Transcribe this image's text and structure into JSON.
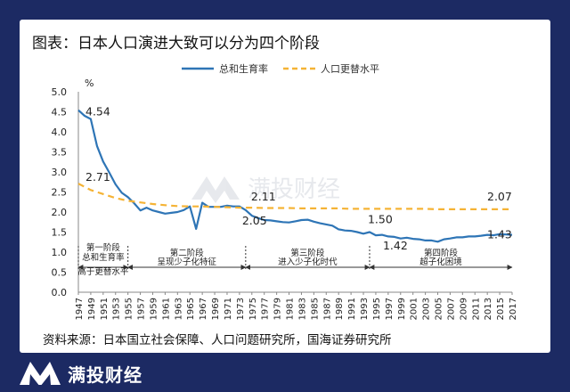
{
  "title": "图表：日本人口演进大致可以分为四个阶段",
  "source": "资料来源：日本国立社会保障、人口问题研究所，国海证券研究所",
  "brand": "满投财经",
  "watermark": "满投财经",
  "colors": {
    "background": "#1c2a63",
    "tfr": "#2e75b6",
    "replacement": "#f5b335"
  },
  "chart_data": {
    "type": "line",
    "unit_label": "%",
    "ylim": [
      0,
      5
    ],
    "yticks": [
      "0.0",
      "0.5",
      "1.0",
      "1.5",
      "2.0",
      "2.5",
      "3.0",
      "3.5",
      "4.0",
      "4.5",
      "5.0"
    ],
    "xticks": [
      "1947",
      "1949",
      "1951",
      "1953",
      "1955",
      "1957",
      "1959",
      "1961",
      "1963",
      "1965",
      "1967",
      "1969",
      "1971",
      "1973",
      "1975",
      "1977",
      "1979",
      "1981",
      "1983",
      "1985",
      "1987",
      "1989",
      "1991",
      "1993",
      "1995",
      "1997",
      "1999",
      "2001",
      "2003",
      "2005",
      "2007",
      "2009",
      "2011",
      "2013",
      "2015",
      "2017"
    ],
    "legend_position": "top-right",
    "series": [
      {
        "name": "总和生育率",
        "style": "solid",
        "x": [
          1947,
          1948,
          1949,
          1950,
          1951,
          1952,
          1953,
          1954,
          1955,
          1956,
          1957,
          1958,
          1959,
          1960,
          1961,
          1962,
          1963,
          1964,
          1965,
          1966,
          1967,
          1968,
          1969,
          1970,
          1971,
          1972,
          1973,
          1974,
          1975,
          1976,
          1977,
          1978,
          1979,
          1980,
          1981,
          1982,
          1983,
          1984,
          1985,
          1986,
          1987,
          1988,
          1989,
          1990,
          1991,
          1992,
          1993,
          1994,
          1995,
          1996,
          1997,
          1998,
          1999,
          2000,
          2001,
          2002,
          2003,
          2004,
          2005,
          2006,
          2007,
          2008,
          2009,
          2010,
          2011,
          2012,
          2013,
          2014,
          2015,
          2016,
          2017
        ],
        "values": [
          4.54,
          4.4,
          4.32,
          3.65,
          3.26,
          2.98,
          2.69,
          2.48,
          2.37,
          2.22,
          2.04,
          2.11,
          2.04,
          2.0,
          1.96,
          1.98,
          2.0,
          2.05,
          2.14,
          1.58,
          2.23,
          2.13,
          2.13,
          2.13,
          2.16,
          2.14,
          2.14,
          2.05,
          1.91,
          1.85,
          1.8,
          1.79,
          1.77,
          1.75,
          1.74,
          1.77,
          1.8,
          1.81,
          1.76,
          1.72,
          1.69,
          1.66,
          1.57,
          1.54,
          1.53,
          1.5,
          1.46,
          1.5,
          1.42,
          1.43,
          1.39,
          1.38,
          1.34,
          1.36,
          1.33,
          1.32,
          1.29,
          1.29,
          1.26,
          1.32,
          1.34,
          1.37,
          1.37,
          1.39,
          1.39,
          1.41,
          1.43,
          1.42,
          1.45,
          1.44,
          1.43
        ]
      },
      {
        "name": "人口更替水平",
        "style": "dashed",
        "x": [
          1947,
          1949,
          1951,
          1953,
          1955,
          1957,
          1959,
          1961,
          1963,
          1965,
          1967,
          1969,
          1971,
          1973,
          1975,
          1977,
          1979,
          1981,
          1983,
          1985,
          1987,
          1989,
          1991,
          1993,
          1995,
          1997,
          1999,
          2001,
          2003,
          2005,
          2007,
          2009,
          2011,
          2013,
          2015,
          2017
        ],
        "values": [
          2.71,
          2.55,
          2.45,
          2.35,
          2.28,
          2.24,
          2.2,
          2.17,
          2.15,
          2.14,
          2.14,
          2.13,
          2.12,
          2.11,
          2.11,
          2.1,
          2.1,
          2.1,
          2.09,
          2.09,
          2.09,
          2.09,
          2.08,
          2.08,
          2.08,
          2.08,
          2.08,
          2.08,
          2.08,
          2.07,
          2.07,
          2.07,
          2.07,
          2.07,
          2.07,
          2.07
        ]
      }
    ],
    "data_labels": [
      {
        "text": "4.54",
        "x": 1947,
        "y": 4.54
      },
      {
        "text": "2.71",
        "x": 1947,
        "y": 2.71
      },
      {
        "text": "2.11",
        "x": 1974,
        "y": 2.11
      },
      {
        "text": "2.05",
        "x": 1974,
        "y": 2.05
      },
      {
        "text": "1.50",
        "x": 1994,
        "y": 1.5
      },
      {
        "text": "1.42",
        "x": 1995,
        "y": 1.42
      },
      {
        "text": "2.07",
        "x": 2017,
        "y": 2.07
      },
      {
        "text": "1.43",
        "x": 2017,
        "y": 1.43
      }
    ],
    "phases": [
      {
        "lines": [
          "第一阶段",
          "总和生育率",
          "高于更替水平"
        ],
        "start": 1947,
        "end": 1955
      },
      {
        "lines": [
          "第二阶段",
          "呈现少子化特征"
        ],
        "start": 1955,
        "end": 1974
      },
      {
        "lines": [
          "第三阶段",
          "进入少子化时代"
        ],
        "start": 1974,
        "end": 1994
      },
      {
        "lines": [
          "第四阶段",
          "超子化困境"
        ],
        "start": 1994,
        "end": 2017
      }
    ]
  }
}
